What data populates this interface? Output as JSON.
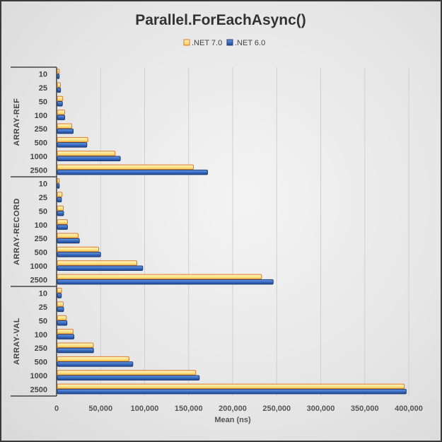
{
  "chart_data": {
    "type": "bar",
    "orientation": "horizontal",
    "title": "Parallel.ForEachAsync()",
    "xlabel": "Mean (ns)",
    "ylabel": "",
    "xlim": [
      0,
      400000
    ],
    "xticks": [
      "0",
      "50,000",
      "100,000",
      "150,000",
      "200,000",
      "250,000",
      "300,000",
      "350,000",
      "400,000"
    ],
    "grid": true,
    "legend_position": "top",
    "groups": [
      "ARRAY-REF",
      "ARRAY-RECORD",
      "ARRAY-VAL"
    ],
    "categories": [
      "10",
      "25",
      "50",
      "100",
      "250",
      "500",
      "1000",
      "2500"
    ],
    "series": [
      {
        "name": ".NET 7.0",
        "color": "#fde9a0",
        "border": "#e07a22",
        "values": [
          [
            3000,
            4400,
            7000,
            9200,
            17300,
            35500,
            66500,
            155400
          ],
          [
            3100,
            6300,
            7600,
            12400,
            24500,
            47800,
            91200,
            232800
          ],
          [
            5700,
            7600,
            11100,
            18800,
            41700,
            82200,
            158000,
            394900
          ]
        ]
      },
      {
        "name": ".NET 6.0",
        "color": "#3a6fc4",
        "border": "#1f3f7a",
        "values": [
          [
            3000,
            4500,
            6600,
            9300,
            18900,
            34400,
            72400,
            171500
          ],
          [
            3100,
            5500,
            8000,
            12400,
            25900,
            50000,
            97800,
            246000
          ],
          [
            5400,
            8000,
            11800,
            19700,
            42000,
            86600,
            162100,
            397100
          ]
        ]
      }
    ]
  }
}
